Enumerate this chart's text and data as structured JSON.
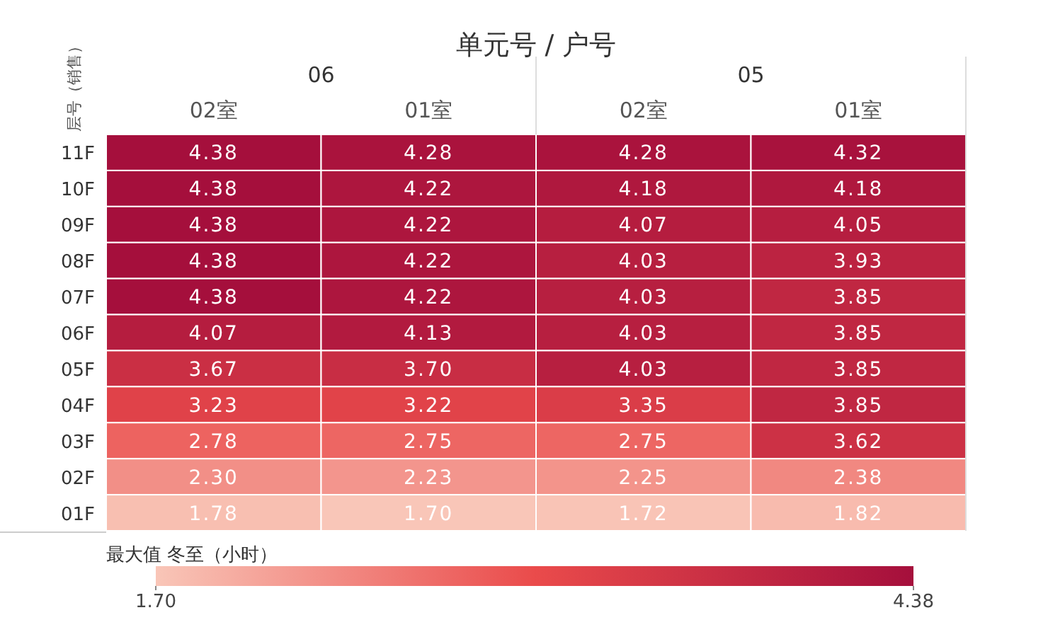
{
  "chart_data": {
    "type": "heatmap",
    "title": "单元号 / 户号",
    "ylabel": "层号（销售）",
    "clabel": "最大值 冬至（小时）",
    "annotations": [
      "06",
      "05"
    ],
    "categories": [
      "02室",
      "01室",
      "02室",
      "01室"
    ],
    "y_categories": [
      "11F",
      "10F",
      "09F",
      "08F",
      "07F",
      "06F",
      "05F",
      "04F",
      "03F",
      "02F",
      "01F"
    ],
    "cells": [
      [
        4.38,
        4.28,
        4.28,
        4.32
      ],
      [
        4.38,
        4.22,
        4.18,
        4.18
      ],
      [
        4.38,
        4.22,
        4.07,
        4.05
      ],
      [
        4.38,
        4.22,
        4.03,
        3.93
      ],
      [
        4.38,
        4.22,
        4.03,
        3.85
      ],
      [
        4.07,
        4.13,
        4.03,
        3.85
      ],
      [
        3.67,
        3.7,
        4.03,
        3.85
      ],
      [
        3.23,
        3.22,
        3.35,
        3.85
      ],
      [
        2.78,
        2.75,
        2.75,
        3.62
      ],
      [
        2.3,
        2.23,
        2.25,
        2.38
      ],
      [
        1.78,
        1.7,
        1.72,
        1.82
      ]
    ],
    "cell_labels": [
      [
        "4.38",
        "4.28",
        "4.28",
        "4.32"
      ],
      [
        "4.38",
        "4.22",
        "4.18",
        "4.18"
      ],
      [
        "4.38",
        "4.22",
        "4.07",
        "4.05"
      ],
      [
        "4.38",
        "4.22",
        "4.03",
        "3.93"
      ],
      [
        "4.38",
        "4.22",
        "4.03",
        "3.85"
      ],
      [
        "4.07",
        "4.13",
        "4.03",
        "3.85"
      ],
      [
        "3.67",
        "3.70",
        "4.03",
        "3.85"
      ],
      [
        "3.23",
        "3.22",
        "3.35",
        "3.85"
      ],
      [
        "2.78",
        "2.75",
        "2.75",
        "3.62"
      ],
      [
        "2.30",
        "2.23",
        "2.25",
        "2.38"
      ],
      [
        "1.78",
        "1.70",
        "1.72",
        "1.82"
      ]
    ],
    "colors": [
      "#f9c6b8",
      "#ea4b4b",
      "#a50f3c"
    ],
    "clim": [
      1.7,
      4.38
    ],
    "cticks": [
      {
        "value": 1.7,
        "label": "1.70"
      },
      {
        "value": 4.38,
        "label": "4.38"
      }
    ],
    "data_labels": true
  }
}
